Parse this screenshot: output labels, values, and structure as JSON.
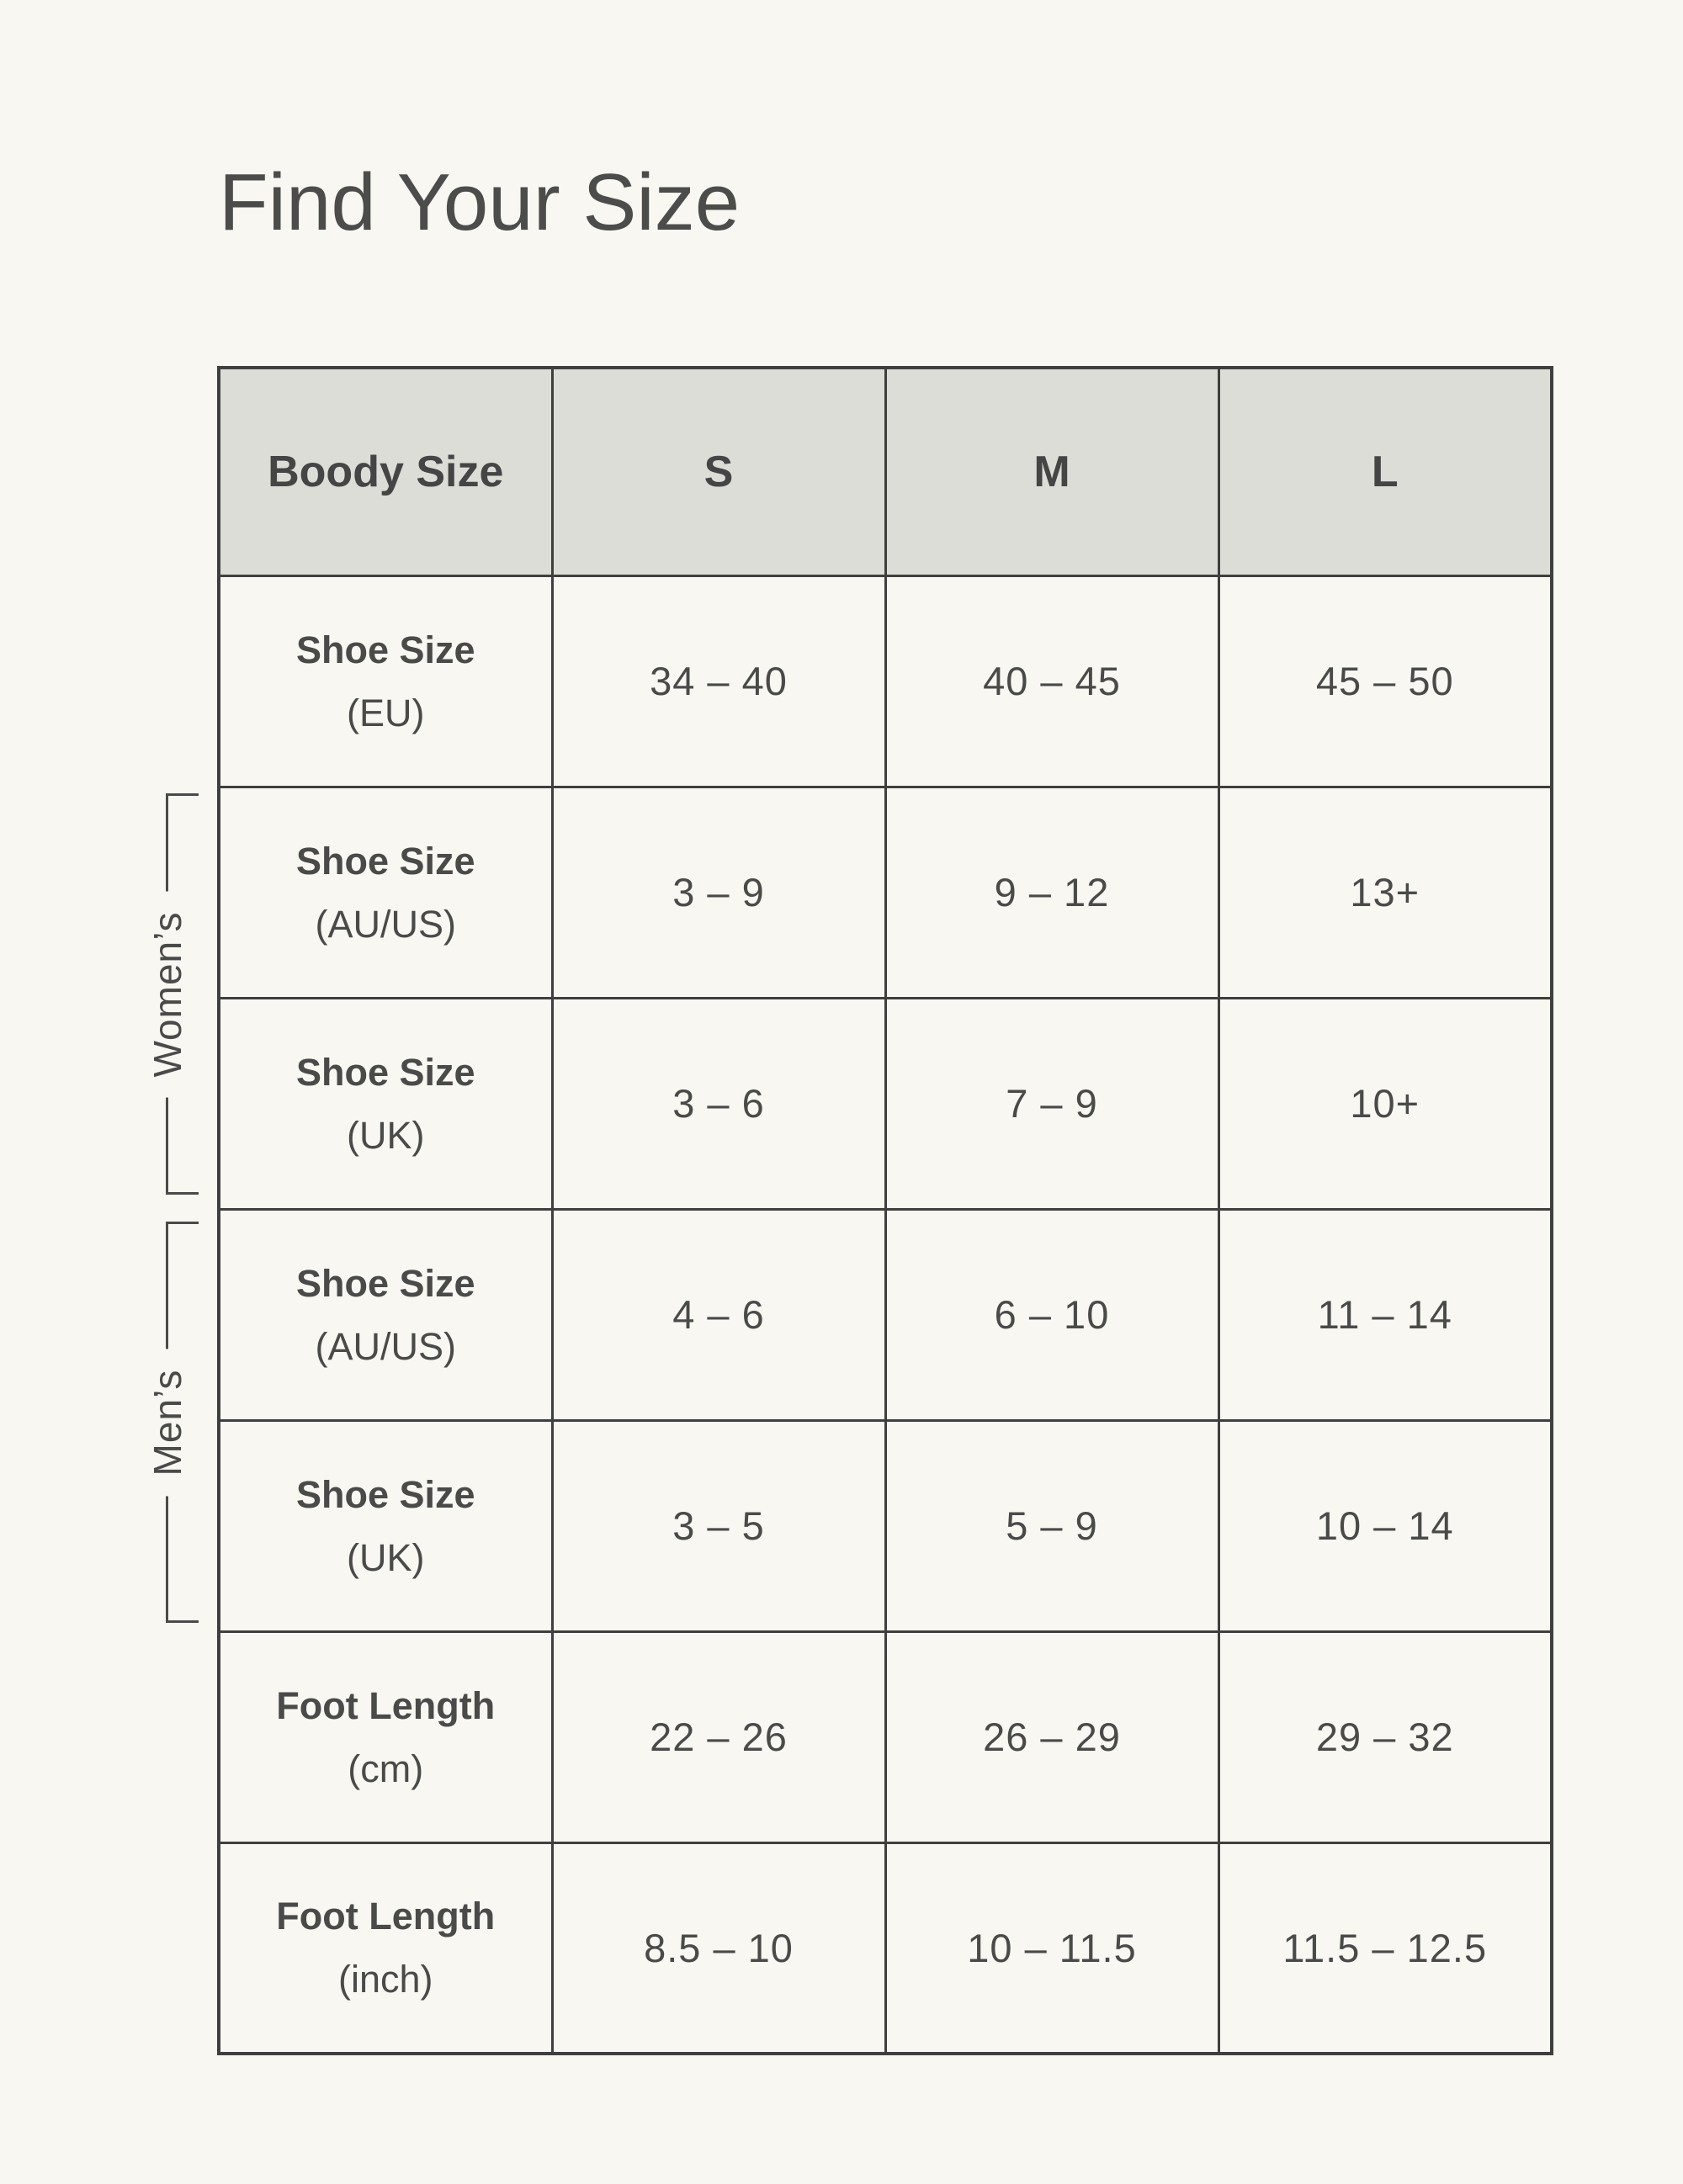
{
  "title": "Find Your Size",
  "colors": {
    "page_bg": "#f8f7f2",
    "header_bg": "#dcddd6",
    "border": "#3f3f3e",
    "text": "#4a4a49"
  },
  "groups": [
    {
      "label": "Women’s"
    },
    {
      "label": "Men’s"
    }
  ],
  "chart_data": {
    "type": "table",
    "title": "Find Your Size",
    "columns": [
      "Boody Size",
      "S",
      "M",
      "L"
    ],
    "rows": [
      {
        "group": "",
        "label": "Shoe Size",
        "sub": "(EU)",
        "values": [
          "34 – 40",
          "40 – 45",
          "45 – 50"
        ]
      },
      {
        "group": "Women’s",
        "label": "Shoe Size",
        "sub": "(AU/US)",
        "values": [
          "3 – 9",
          "9 – 12",
          "13+"
        ]
      },
      {
        "group": "Women’s",
        "label": "Shoe Size",
        "sub": "(UK)",
        "values": [
          "3 – 6",
          "7 – 9",
          "10+"
        ]
      },
      {
        "group": "Men’s",
        "label": "Shoe Size",
        "sub": "(AU/US)",
        "values": [
          "4 – 6",
          "6 – 10",
          "11 – 14"
        ]
      },
      {
        "group": "Men’s",
        "label": "Shoe Size",
        "sub": "(UK)",
        "values": [
          "3 – 5",
          "5 – 9",
          "10 – 14"
        ]
      },
      {
        "group": "",
        "label": "Foot Length",
        "sub": "(cm)",
        "values": [
          "22 – 26",
          "26 – 29",
          "29 – 32"
        ]
      },
      {
        "group": "",
        "label": "Foot Length",
        "sub": "(inch)",
        "values": [
          "8.5 – 10",
          "10 – 11.5",
          "11.5 – 12.5"
        ]
      }
    ]
  }
}
